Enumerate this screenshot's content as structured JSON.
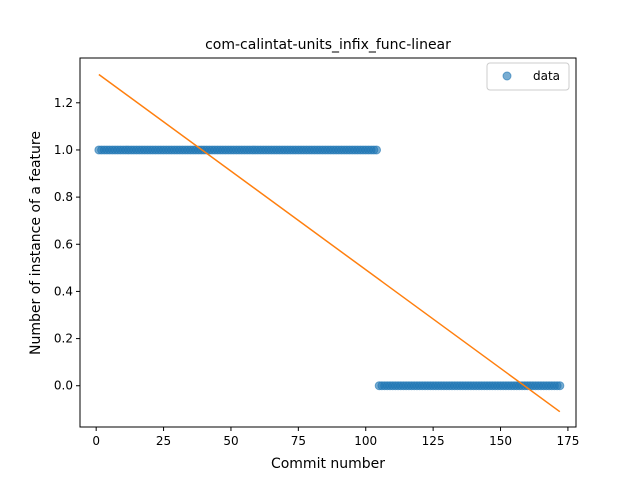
{
  "chart_data": {
    "type": "scatter",
    "title": "com-calintat-units_infix_func-linear",
    "xlabel": "Commit number",
    "ylabel": "Number of instance of a feature",
    "xlim": [
      -6,
      178
    ],
    "ylim": [
      -0.175,
      1.39
    ],
    "xticks": [
      0,
      25,
      50,
      75,
      100,
      125,
      150,
      175
    ],
    "yticks": [
      0.0,
      0.2,
      0.4,
      0.6,
      0.8,
      1.0,
      1.2
    ],
    "ytick_labels": [
      "0.0",
      "0.2",
      "0.4",
      "0.6",
      "0.8",
      "1.0",
      "1.2"
    ],
    "grid": false,
    "legend": {
      "entries": [
        "data"
      ],
      "placement": "upper right"
    },
    "series": [
      {
        "name": "data",
        "kind": "scatter",
        "color": "#1f77b4",
        "segments": [
          {
            "x_start": 1,
            "x_end": 104,
            "y": 1
          },
          {
            "x_start": 105,
            "x_end": 172,
            "y": 0
          }
        ]
      },
      {
        "kind": "line",
        "color": "#ff7f0e",
        "x": [
          1,
          172
        ],
        "y": [
          1.32,
          -0.11
        ]
      }
    ]
  }
}
